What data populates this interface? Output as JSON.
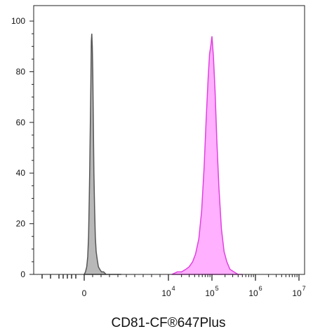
{
  "chart_data": {
    "type": "area",
    "title": "",
    "xlabel": "CD81-CF®647Plus",
    "ylabel": "",
    "x_scale": "logicle",
    "ylim": [
      0,
      105
    ],
    "y_ticks": [
      0,
      20,
      40,
      60,
      80,
      100
    ],
    "x_ticks": [
      {
        "value": 0,
        "base": "0",
        "exponent": ""
      },
      {
        "value": 10000,
        "base": "10",
        "exponent": "4"
      },
      {
        "value": 100000,
        "base": "10",
        "exponent": "5"
      },
      {
        "value": 1000000,
        "base": "10",
        "exponent": "6"
      },
      {
        "value": 10000000,
        "base": "10",
        "exponent": "7"
      }
    ],
    "grid": false,
    "legend": "none",
    "series": [
      {
        "color": "#555555",
        "fill": "#b8b8b8",
        "x": [
          0,
          150,
          300,
          420,
          520,
          600,
          660,
          720,
          780,
          840,
          900,
          960,
          1020,
          1080,
          1150,
          1230,
          1320,
          1420,
          1540,
          1680,
          1850,
          2050,
          2300,
          2600,
          3000,
          3600,
          4400
        ],
        "y": [
          0,
          1,
          3,
          7,
          15,
          30,
          42,
          57,
          74,
          92,
          95,
          90,
          80,
          60,
          40,
          26,
          15,
          9,
          6,
          3,
          2,
          1,
          1,
          0,
          0,
          0,
          0
        ]
      },
      {
        "color": "#e040e0",
        "fill": "#ffb0ff",
        "x": [
          12000,
          16000,
          20000,
          25000,
          30000,
          36000,
          42000,
          50000,
          58000,
          66000,
          74000,
          82000,
          88000,
          94000,
          100000,
          108000,
          118000,
          130000,
          145000,
          165000,
          190000,
          220000,
          260000,
          320000,
          400000,
          500000
        ],
        "y": [
          0,
          1,
          1,
          2,
          3,
          5,
          8,
          14,
          25,
          42,
          62,
          78,
          87,
          90,
          94,
          86,
          72,
          52,
          34,
          18,
          9,
          5,
          2,
          1,
          0,
          0
        ]
      }
    ]
  }
}
